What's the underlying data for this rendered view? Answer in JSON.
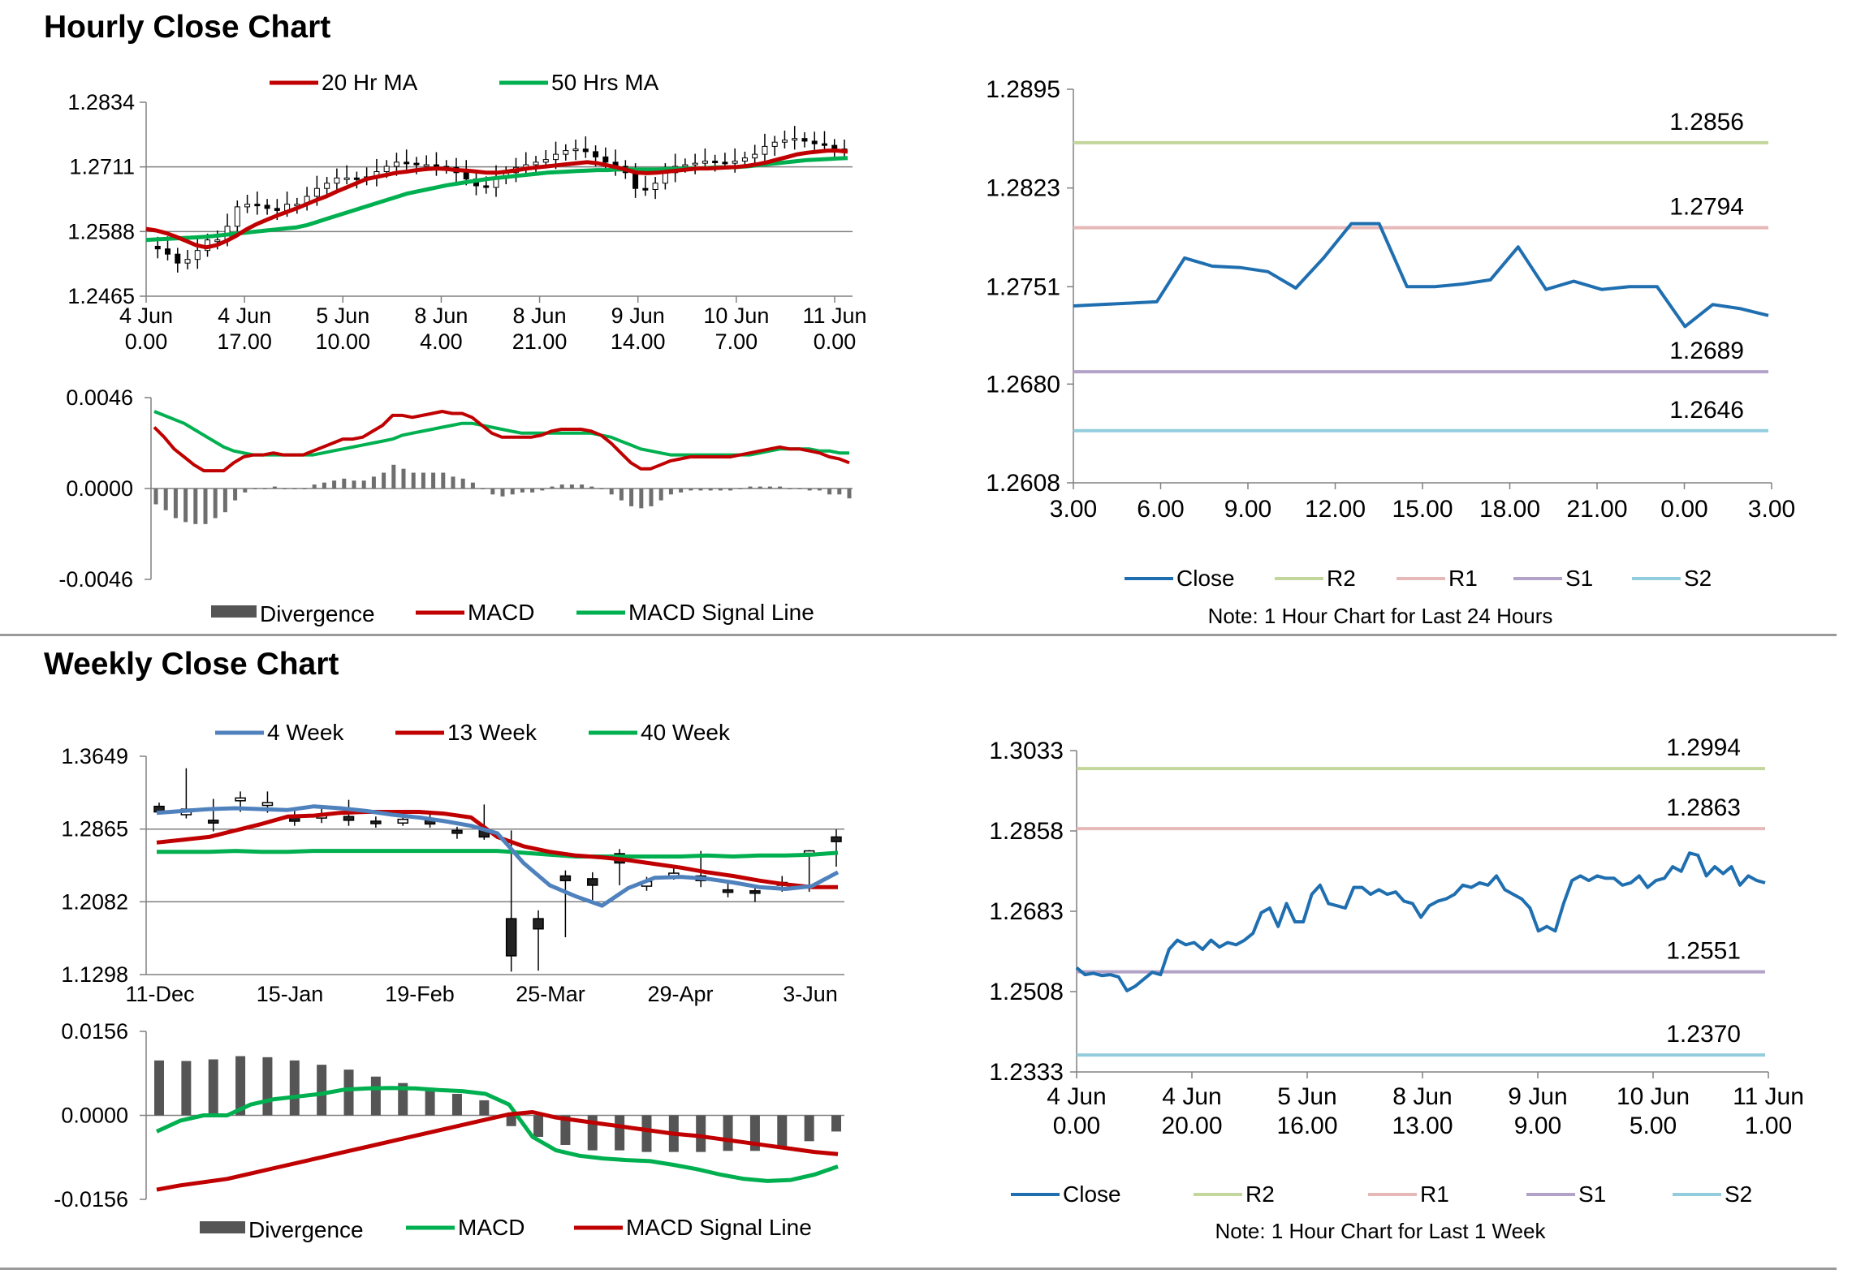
{
  "sections": {
    "hourly_title": "Hourly Close Chart",
    "weekly_title": "Weekly Close Chart"
  },
  "colors": {
    "red": "#c00000",
    "green": "#00b050",
    "blue": "#4f81bd",
    "close": "#1f6fb0",
    "r2": "#c3d69b",
    "r1": "#e6b9b8",
    "s1": "#b3a2c7",
    "s2": "#93cddd",
    "bar": "#555555"
  },
  "chart_data": [
    {
      "id": "hourly-price",
      "type": "candlestick",
      "yticks": [
        "1.2834",
        "1.2711",
        "1.2588",
        "1.2465"
      ],
      "ylim": [
        1.2465,
        1.2834
      ],
      "xticks": [
        [
          "4 Jun",
          "0.00"
        ],
        [
          "4 Jun",
          "17.00"
        ],
        [
          "5 Jun",
          "10.00"
        ],
        [
          "8 Jun",
          "4.00"
        ],
        [
          "8 Jun",
          "21.00"
        ],
        [
          "9 Jun",
          "14.00"
        ],
        [
          "10 Jun",
          "7.00"
        ],
        [
          "11 Jun",
          "0.00"
        ]
      ],
      "legend": [
        "20 Hr MA",
        "50 Hrs MA"
      ],
      "close": [
        1.256,
        1.2555,
        1.2545,
        1.2528,
        1.2535,
        1.2552,
        1.2572,
        1.2572,
        1.2598,
        1.2635,
        1.264,
        1.2638,
        1.2632,
        1.2628,
        1.264,
        1.264,
        1.2655,
        1.267,
        1.268,
        1.269,
        1.269,
        1.2688,
        1.2692,
        1.2702,
        1.2712,
        1.272,
        1.2718,
        1.2715,
        1.2715,
        1.2712,
        1.271,
        1.27,
        1.2688,
        1.2675,
        1.2672,
        1.269,
        1.27,
        1.271,
        1.2715,
        1.272,
        1.2725,
        1.2735,
        1.2742,
        1.2745,
        1.274,
        1.273,
        1.272,
        1.2712,
        1.27,
        1.267,
        1.2668,
        1.268,
        1.27,
        1.2712,
        1.2715,
        1.2718,
        1.2722,
        1.272,
        1.2718,
        1.2722,
        1.2728,
        1.2735,
        1.275,
        1.2758,
        1.2762,
        1.2765,
        1.276,
        1.2755,
        1.2752,
        1.2745,
        1.2742
      ],
      "ma20": [
        1.2593,
        1.259,
        1.2585,
        1.2578,
        1.257,
        1.2562,
        1.2558,
        1.2562,
        1.257,
        1.258,
        1.2592,
        1.2602,
        1.261,
        1.2618,
        1.2625,
        1.2632,
        1.264,
        1.2648,
        1.2655,
        1.2664,
        1.2672,
        1.268,
        1.2688,
        1.2692,
        1.2696,
        1.27,
        1.2702,
        1.2705,
        1.2707,
        1.2708,
        1.2707,
        1.2705,
        1.2704,
        1.2702,
        1.27,
        1.27,
        1.2702,
        1.2705,
        1.2708,
        1.271,
        1.2712,
        1.2714,
        1.2716,
        1.2718,
        1.272,
        1.2718,
        1.2714,
        1.271,
        1.2705,
        1.27,
        1.2699,
        1.27,
        1.2702,
        1.2704,
        1.2706,
        1.2708,
        1.2708,
        1.2709,
        1.271,
        1.2711,
        1.2713,
        1.2716,
        1.272,
        1.2725,
        1.273,
        1.2735,
        1.2738,
        1.274,
        1.2742,
        1.2742,
        1.274
      ],
      "ma50": [
        1.2572,
        1.2573,
        1.2574,
        1.2575,
        1.2576,
        1.2577,
        1.2578,
        1.258,
        1.2582,
        1.2584,
        1.2586,
        1.2588,
        1.259,
        1.2592,
        1.2594,
        1.2596,
        1.26,
        1.2606,
        1.2612,
        1.2618,
        1.2624,
        1.263,
        1.2636,
        1.2642,
        1.2648,
        1.2654,
        1.266,
        1.2664,
        1.2668,
        1.2672,
        1.2676,
        1.2679,
        1.2682,
        1.2685,
        1.2688,
        1.269,
        1.2692,
        1.2694,
        1.2696,
        1.2698,
        1.27,
        1.2701,
        1.2702,
        1.2703,
        1.2704,
        1.2705,
        1.2705,
        1.2706,
        1.2706,
        1.2706,
        1.2706,
        1.2706,
        1.2707,
        1.2707,
        1.2708,
        1.2708,
        1.2709,
        1.271,
        1.271,
        1.2711,
        1.2712,
        1.2714,
        1.2716,
        1.2718,
        1.272,
        1.2722,
        1.2724,
        1.2725,
        1.2726,
        1.2727,
        1.2728
      ]
    },
    {
      "id": "hourly-macd",
      "type": "macd",
      "yticks": [
        "0.0046",
        "0.0000",
        "-0.0046"
      ],
      "ylim": [
        -0.0046,
        0.0046
      ],
      "legend": [
        "Divergence",
        "MACD",
        "MACD Signal Line"
      ],
      "macd": [
        0.0031,
        0.0026,
        0.002,
        0.0016,
        0.0012,
        0.0009,
        0.0009,
        0.0009,
        0.0013,
        0.0016,
        0.0017,
        0.0017,
        0.0018,
        0.0017,
        0.0017,
        0.0017,
        0.0019,
        0.0021,
        0.0023,
        0.0025,
        0.0025,
        0.0026,
        0.0029,
        0.0032,
        0.0037,
        0.0037,
        0.0036,
        0.0037,
        0.0038,
        0.0039,
        0.0038,
        0.0038,
        0.0036,
        0.0032,
        0.0028,
        0.0026,
        0.0026,
        0.0026,
        0.0026,
        0.0027,
        0.0029,
        0.003,
        0.003,
        0.003,
        0.0029,
        0.0027,
        0.0023,
        0.0018,
        0.0013,
        0.001,
        0.001,
        0.0012,
        0.0014,
        0.0015,
        0.0016,
        0.0016,
        0.0016,
        0.0016,
        0.0016,
        0.0017,
        0.0018,
        0.0019,
        0.002,
        0.0021,
        0.002,
        0.002,
        0.0019,
        0.0018,
        0.0016,
        0.0015,
        0.0013
      ],
      "signal": [
        0.0039,
        0.0037,
        0.0035,
        0.0033,
        0.003,
        0.0027,
        0.0024,
        0.0021,
        0.0019,
        0.0018,
        0.0017,
        0.0017,
        0.0017,
        0.0017,
        0.0017,
        0.0017,
        0.0017,
        0.0018,
        0.0019,
        0.002,
        0.0021,
        0.0022,
        0.0023,
        0.0024,
        0.0025,
        0.0027,
        0.0028,
        0.0029,
        0.003,
        0.0031,
        0.0032,
        0.0033,
        0.0033,
        0.0032,
        0.0031,
        0.003,
        0.0029,
        0.0028,
        0.0028,
        0.0028,
        0.0028,
        0.0028,
        0.0028,
        0.0028,
        0.0028,
        0.0027,
        0.0026,
        0.0024,
        0.0022,
        0.002,
        0.0019,
        0.0018,
        0.0017,
        0.0017,
        0.0017,
        0.0017,
        0.0017,
        0.0017,
        0.0017,
        0.0017,
        0.0017,
        0.0018,
        0.0019,
        0.002,
        0.002,
        0.002,
        0.002,
        0.0019,
        0.0019,
        0.0018,
        0.0018
      ]
    },
    {
      "id": "hourly-levels",
      "type": "line",
      "yticks": [
        "1.2895",
        "1.2823",
        "1.2751",
        "1.2680",
        "1.2608"
      ],
      "ylim": [
        1.2608,
        1.2895
      ],
      "xticks": [
        "3.00",
        "6.00",
        "9.00",
        "12.00",
        "15.00",
        "18.00",
        "21.00",
        "0.00",
        "3.00"
      ],
      "close": [
        1.2737,
        1.2738,
        1.2739,
        1.274,
        1.2772,
        1.2766,
        1.2765,
        1.2762,
        1.275,
        1.2772,
        1.2797,
        1.2797,
        1.2751,
        1.2751,
        1.2753,
        1.2756,
        1.278,
        1.2749,
        1.2755,
        1.2749,
        1.2751,
        1.2751,
        1.2722,
        1.2738,
        1.2735,
        1.273
      ],
      "levels": [
        {
          "name": "R2",
          "value": 1.2856,
          "label": "1.2856"
        },
        {
          "name": "R1",
          "value": 1.2794,
          "label": "1.2794"
        },
        {
          "name": "S1",
          "value": 1.2689,
          "label": "1.2689"
        },
        {
          "name": "S2",
          "value": 1.2646,
          "label": "1.2646"
        }
      ],
      "legend": [
        "Close",
        "R2",
        "R1",
        "S1",
        "S2"
      ],
      "note": "Note: 1 Hour Chart for Last 24 Hours"
    },
    {
      "id": "weekly-price",
      "type": "candlestick",
      "yticks": [
        "1.3649",
        "1.2865",
        "1.2082",
        "1.1298"
      ],
      "ylim": [
        1.1298,
        1.3649
      ],
      "xticks": [
        "11-Dec",
        "15-Jan",
        "19-Feb",
        "25-Mar",
        "29-Apr",
        "3-Jun"
      ],
      "legend": [
        "4 Week",
        "13 Week",
        "40 Week"
      ],
      "candles": [
        {
          "o": 1.311,
          "c": 1.305,
          "h": 1.315,
          "l": 1.302
        },
        {
          "o": 1.302,
          "c": 1.308,
          "h": 1.352,
          "l": 1.298
        },
        {
          "o": 1.296,
          "c": 1.293,
          "h": 1.319,
          "l": 1.284
        },
        {
          "o": 1.317,
          "c": 1.32,
          "h": 1.327,
          "l": 1.305
        },
        {
          "o": 1.312,
          "c": 1.315,
          "h": 1.327,
          "l": 1.304
        },
        {
          "o": 1.3,
          "c": 1.295,
          "h": 1.306,
          "l": 1.29
        },
        {
          "o": 1.299,
          "c": 1.301,
          "h": 1.312,
          "l": 1.293
        },
        {
          "o": 1.3,
          "c": 1.296,
          "h": 1.318,
          "l": 1.29
        },
        {
          "o": 1.295,
          "c": 1.293,
          "h": 1.3,
          "l": 1.288
        },
        {
          "o": 1.293,
          "c": 1.297,
          "h": 1.305,
          "l": 1.29
        },
        {
          "o": 1.297,
          "c": 1.292,
          "h": 1.303,
          "l": 1.288
        },
        {
          "o": 1.285,
          "c": 1.282,
          "h": 1.289,
          "l": 1.276
        },
        {
          "o": 1.286,
          "c": 1.278,
          "h": 1.313,
          "l": 1.275
        },
        {
          "o": 1.19,
          "c": 1.15,
          "h": 1.285,
          "l": 1.133
        },
        {
          "o": 1.19,
          "c": 1.179,
          "h": 1.199,
          "l": 1.134
        },
        {
          "o": 1.236,
          "c": 1.231,
          "h": 1.242,
          "l": 1.17
        },
        {
          "o": 1.233,
          "c": 1.226,
          "h": 1.24,
          "l": 1.21
        },
        {
          "o": 1.26,
          "c": 1.25,
          "h": 1.265,
          "l": 1.226
        },
        {
          "o": 1.225,
          "c": 1.23,
          "h": 1.235,
          "l": 1.22
        },
        {
          "o": 1.236,
          "c": 1.239,
          "h": 1.246,
          "l": 1.232
        },
        {
          "o": 1.236,
          "c": 1.231,
          "h": 1.263,
          "l": 1.224
        },
        {
          "o": 1.221,
          "c": 1.219,
          "h": 1.229,
          "l": 1.213
        },
        {
          "o": 1.22,
          "c": 1.219,
          "h": 1.225,
          "l": 1.208
        },
        {
          "o": 1.229,
          "c": 1.226,
          "h": 1.236,
          "l": 1.219
        },
        {
          "o": 1.261,
          "c": 1.263,
          "h": 1.264,
          "l": 1.219
        },
        {
          "o": 1.278,
          "c": 1.273,
          "h": 1.286,
          "l": 1.246
        }
      ],
      "ma4": [
        1.304,
        1.306,
        1.308,
        1.309,
        1.308,
        1.307,
        1.311,
        1.309,
        1.306,
        1.302,
        1.299,
        1.295,
        1.29,
        1.282,
        1.25,
        1.226,
        1.214,
        1.204,
        1.223,
        1.234,
        1.235,
        1.233,
        1.229,
        1.224,
        1.222,
        1.225,
        1.24
      ],
      "ma13": [
        1.272,
        1.275,
        1.278,
        1.285,
        1.292,
        1.3,
        1.301,
        1.304,
        1.305,
        1.305,
        1.305,
        1.303,
        1.299,
        1.278,
        1.268,
        1.262,
        1.258,
        1.256,
        1.253,
        1.249,
        1.245,
        1.24,
        1.236,
        1.231,
        1.227,
        1.224,
        1.224
      ],
      "ma40": [
        1.262,
        1.262,
        1.262,
        1.263,
        1.262,
        1.262,
        1.263,
        1.263,
        1.263,
        1.263,
        1.263,
        1.263,
        1.263,
        1.263,
        1.261,
        1.259,
        1.257,
        1.257,
        1.257,
        1.257,
        1.257,
        1.258,
        1.257,
        1.258,
        1.258,
        1.259,
        1.261
      ]
    },
    {
      "id": "weekly-macd",
      "type": "macd",
      "yticks": [
        "0.0156",
        "0.0000",
        "-0.0156"
      ],
      "ylim": [
        -0.0156,
        0.0156
      ],
      "legend": [
        "Divergence",
        "MACD",
        "MACD Signal Line"
      ],
      "divergence": [
        0.0102,
        0.0101,
        0.0104,
        0.011,
        0.0108,
        0.0102,
        0.0094,
        0.0085,
        0.0072,
        0.006,
        0.005,
        0.004,
        0.0028,
        -0.002,
        -0.004,
        -0.0055,
        -0.0065,
        -0.0065,
        -0.0068,
        -0.0068,
        -0.0068,
        -0.0066,
        -0.0066,
        -0.0062,
        -0.0048,
        -0.003
      ],
      "macd": [
        -0.003,
        -0.001,
        0.0,
        0.0,
        0.002,
        0.003,
        0.0035,
        0.004,
        0.0048,
        0.005,
        0.0051,
        0.005,
        0.0047,
        0.0045,
        0.004,
        0.002,
        -0.004,
        -0.0065,
        -0.0075,
        -0.008,
        -0.0083,
        -0.0085,
        -0.0092,
        -0.01,
        -0.011,
        -0.0118,
        -0.0122,
        -0.012,
        -0.011,
        -0.0095
      ],
      "signal": [
        -0.0138,
        -0.013,
        -0.0124,
        -0.0118,
        -0.0108,
        -0.0098,
        -0.0088,
        -0.0078,
        -0.0068,
        -0.0058,
        -0.0048,
        -0.0038,
        -0.0028,
        -0.0018,
        -0.0008,
        0.0002,
        0.0006,
        -0.0004,
        -0.001,
        -0.0016,
        -0.0022,
        -0.0028,
        -0.0034,
        -0.0038,
        -0.0044,
        -0.005,
        -0.0056,
        -0.0062,
        -0.0068,
        -0.0072
      ]
    },
    {
      "id": "weekly-levels",
      "type": "line",
      "yticks": [
        "1.3033",
        "1.2858",
        "1.2683",
        "1.2508",
        "1.2333"
      ],
      "ylim": [
        1.2333,
        1.3033
      ],
      "xticks": [
        [
          "4 Jun",
          "0.00"
        ],
        [
          "4 Jun",
          "20.00"
        ],
        [
          "5 Jun",
          "16.00"
        ],
        [
          "8 Jun",
          "13.00"
        ],
        [
          "9 Jun",
          "9.00"
        ],
        [
          "10 Jun",
          "5.00"
        ],
        [
          "11 Jun",
          "1.00"
        ]
      ],
      "close": [
        1.256,
        1.2545,
        1.2548,
        1.2543,
        1.2545,
        1.254,
        1.251,
        1.252,
        1.2535,
        1.255,
        1.2545,
        1.26,
        1.262,
        1.261,
        1.2615,
        1.26,
        1.262,
        1.2605,
        1.2615,
        1.261,
        1.262,
        1.2635,
        1.268,
        1.269,
        1.265,
        1.27,
        1.266,
        1.266,
        1.272,
        1.274,
        1.27,
        1.2695,
        1.269,
        1.2735,
        1.2735,
        1.272,
        1.273,
        1.272,
        1.2725,
        1.2705,
        1.27,
        1.267,
        1.2695,
        1.2705,
        1.271,
        1.272,
        1.274,
        1.2735,
        1.2745,
        1.274,
        1.276,
        1.273,
        1.272,
        1.271,
        1.269,
        1.264,
        1.265,
        1.264,
        1.27,
        1.275,
        1.276,
        1.275,
        1.276,
        1.2755,
        1.2755,
        1.274,
        1.2745,
        1.276,
        1.2735,
        1.275,
        1.2755,
        1.278,
        1.277,
        1.281,
        1.2805,
        1.276,
        1.278,
        1.2765,
        1.278,
        1.274,
        1.276,
        1.275,
        1.2745
      ],
      "levels": [
        {
          "name": "R2",
          "value": 1.2994,
          "label": "1.2994"
        },
        {
          "name": "R1",
          "value": 1.2863,
          "label": "1.2863"
        },
        {
          "name": "S1",
          "value": 1.2551,
          "label": "1.2551"
        },
        {
          "name": "S2",
          "value": 1.237,
          "label": "1.2370"
        }
      ],
      "legend": [
        "Close",
        "R2",
        "R1",
        "S1",
        "S2"
      ],
      "note": "Note: 1 Hour Chart for Last 1 Week"
    }
  ]
}
